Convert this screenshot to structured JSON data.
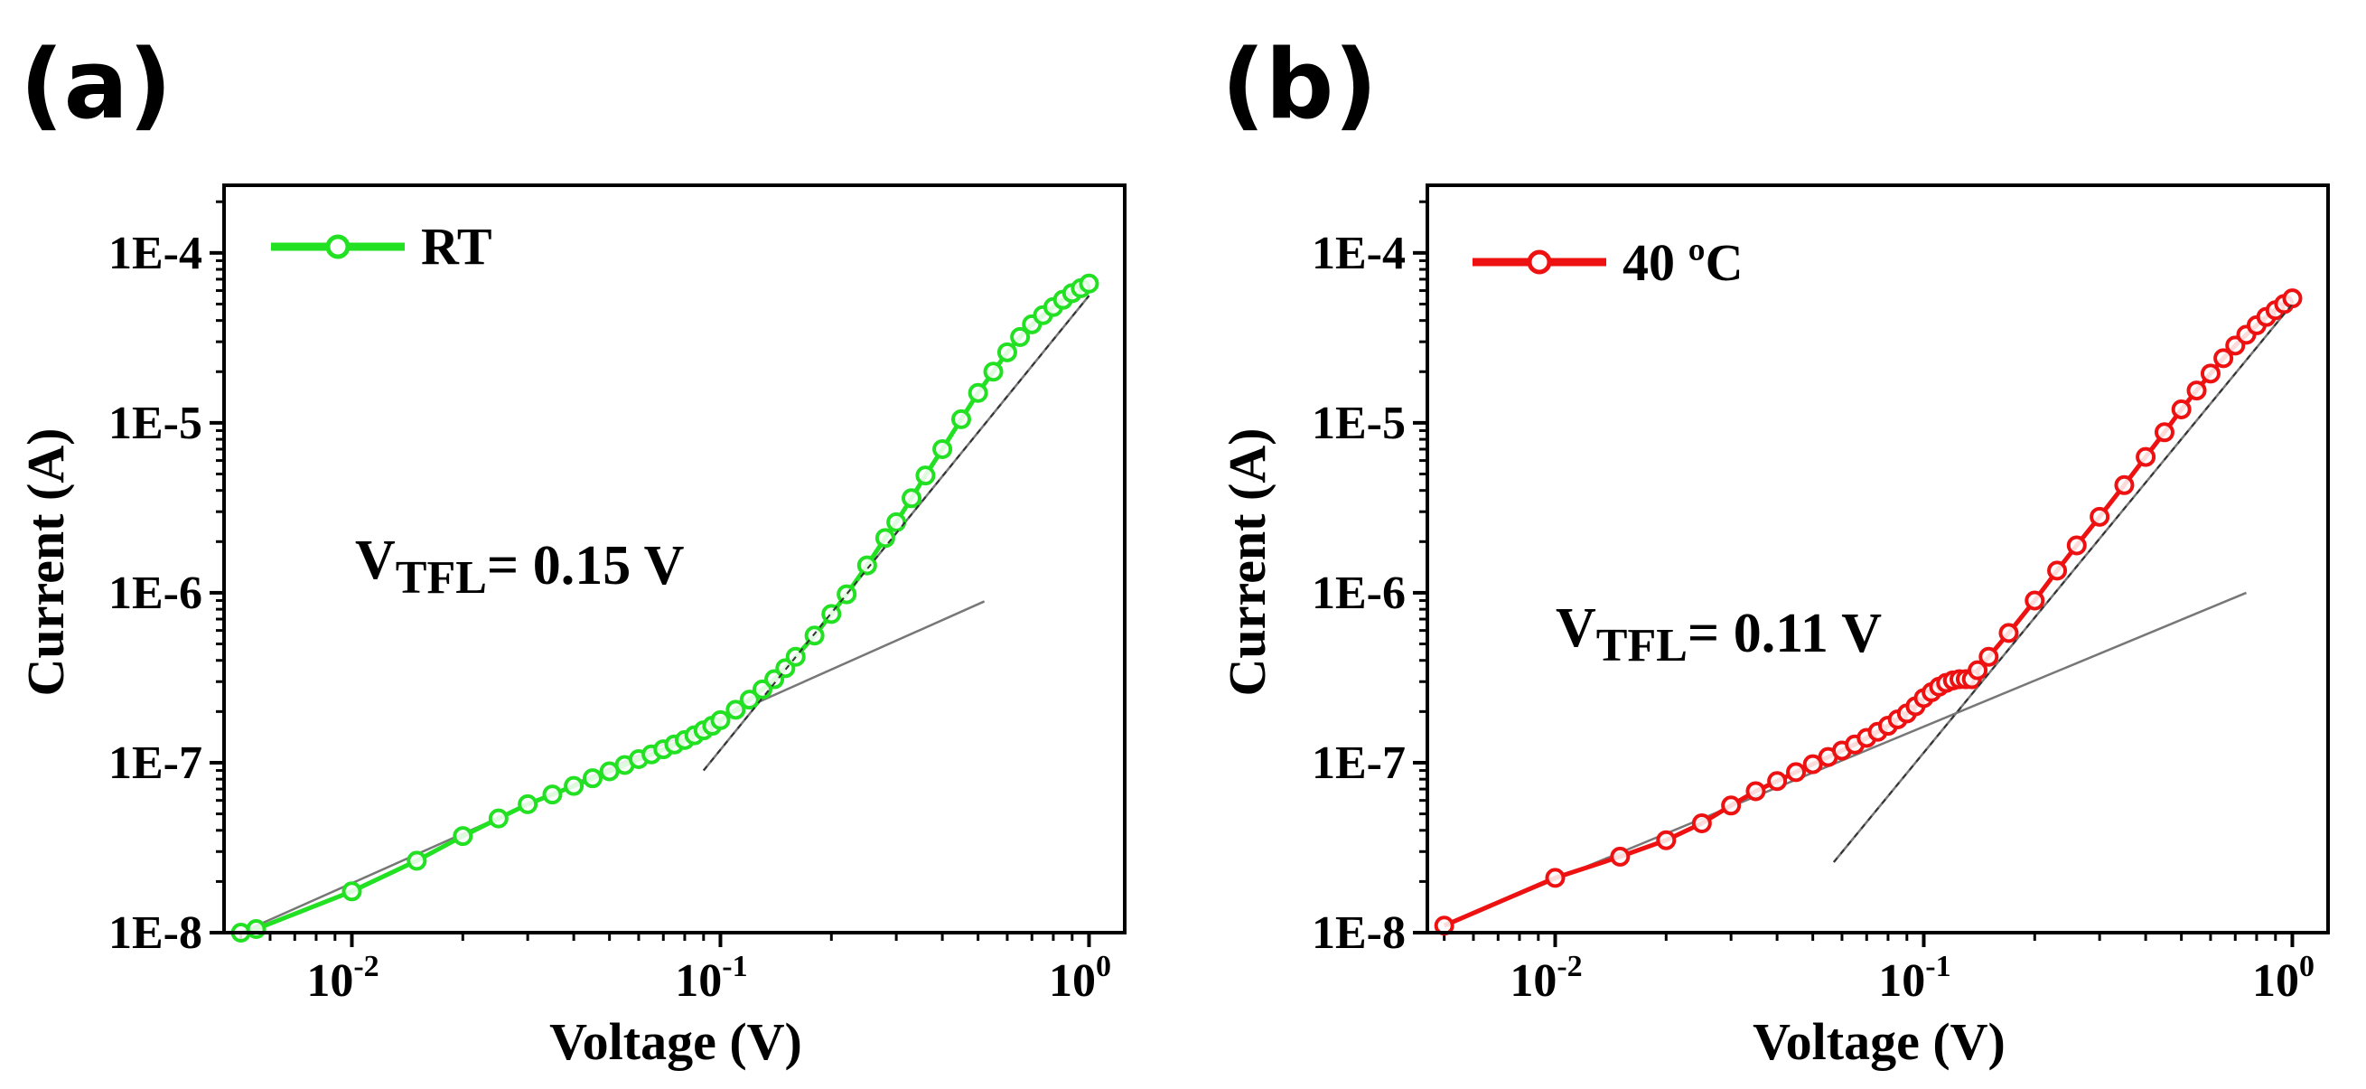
{
  "chart_data": [
    {
      "type": "scatter",
      "panel_label": "(a)",
      "xlabel": "Voltage (V)",
      "ylabel": "Current (A)",
      "xscale": "log",
      "yscale": "log",
      "xlim": [
        0.0045,
        1.25
      ],
      "ylim": [
        1e-08,
        0.00025
      ],
      "x_ticks": [
        {
          "value": 0.01,
          "base": "10",
          "exp": "-2"
        },
        {
          "value": 0.1,
          "base": "10",
          "exp": "-1"
        },
        {
          "value": 1,
          "base": "10",
          "exp": "0"
        }
      ],
      "y_ticks": [
        {
          "value": 1e-08,
          "label": "1E-8"
        },
        {
          "value": 1e-07,
          "label": "1E-7"
        },
        {
          "value": 1e-06,
          "label": "1E-6"
        },
        {
          "value": 1e-05,
          "label": "1E-5"
        },
        {
          "value": 0.0001,
          "label": "1E-4"
        }
      ],
      "legend": {
        "label": "RT",
        "position": "top-left"
      },
      "color": "#22e022",
      "annotation": {
        "main": "V",
        "sub": "TFL",
        "rest": "= 0.15 V"
      },
      "series": {
        "name": "RT",
        "x": [
          0.005,
          0.0055,
          0.01,
          0.015,
          0.02,
          0.025,
          0.03,
          0.035,
          0.04,
          0.045,
          0.05,
          0.055,
          0.06,
          0.065,
          0.07,
          0.075,
          0.08,
          0.085,
          0.09,
          0.095,
          0.1,
          0.11,
          0.12,
          0.13,
          0.14,
          0.15,
          0.16,
          0.18,
          0.2,
          0.22,
          0.25,
          0.28,
          0.3,
          0.33,
          0.36,
          0.4,
          0.45,
          0.5,
          0.55,
          0.6,
          0.65,
          0.7,
          0.75,
          0.8,
          0.85,
          0.9,
          0.95,
          1.0
        ],
        "y": [
          1e-08,
          1.05e-08,
          1.75e-08,
          2.65e-08,
          3.7e-08,
          4.7e-08,
          5.7e-08,
          6.5e-08,
          7.3e-08,
          8.1e-08,
          8.9e-08,
          9.7e-08,
          1.05e-07,
          1.12e-07,
          1.2e-07,
          1.28e-07,
          1.36e-07,
          1.45e-07,
          1.55e-07,
          1.65e-07,
          1.78e-07,
          2.05e-07,
          2.35e-07,
          2.7e-07,
          3.1e-07,
          3.6e-07,
          4.2e-07,
          5.6e-07,
          7.5e-07,
          9.8e-07,
          1.45e-06,
          2.1e-06,
          2.6e-06,
          3.6e-06,
          4.9e-06,
          7e-06,
          1.05e-05,
          1.5e-05,
          2e-05,
          2.6e-05,
          3.2e-05,
          3.8e-05,
          4.3e-05,
          4.8e-05,
          5.3e-05,
          5.8e-05,
          6.2e-05,
          6.6e-05
        ]
      },
      "fit_lines": [
        {
          "x": [
            0.005,
            0.52
          ],
          "y": [
            1e-08,
            8.9e-07
          ]
        },
        {
          "x": [
            0.09,
            1.0
          ],
          "y": [
            9e-08,
            5.6e-05
          ]
        }
      ]
    },
    {
      "type": "scatter",
      "panel_label": "(b)",
      "xlabel": "Voltage (V)",
      "ylabel": "Current (A)",
      "xscale": "log",
      "yscale": "log",
      "xlim": [
        0.0045,
        1.25
      ],
      "ylim": [
        1e-08,
        0.00025
      ],
      "x_ticks": [
        {
          "value": 0.01,
          "base": "10",
          "exp": "-2"
        },
        {
          "value": 0.1,
          "base": "10",
          "exp": "-1"
        },
        {
          "value": 1,
          "base": "10",
          "exp": "0"
        }
      ],
      "y_ticks": [
        {
          "value": 1e-08,
          "label": "1E-8"
        },
        {
          "value": 1e-07,
          "label": "1E-7"
        },
        {
          "value": 1e-06,
          "label": "1E-6"
        },
        {
          "value": 1e-05,
          "label": "1E-5"
        },
        {
          "value": 0.0001,
          "label": "1E-4"
        }
      ],
      "legend": {
        "label": "40 ºC",
        "position": "top-left"
      },
      "color": "#ee1111",
      "annotation": {
        "main": "V",
        "sub": "TFL",
        "rest": "= 0.11 V"
      },
      "series": {
        "name": "40 ºC",
        "x": [
          0.005,
          0.01,
          0.015,
          0.02,
          0.025,
          0.03,
          0.035,
          0.04,
          0.045,
          0.05,
          0.055,
          0.06,
          0.065,
          0.07,
          0.075,
          0.08,
          0.085,
          0.09,
          0.095,
          0.1,
          0.105,
          0.11,
          0.115,
          0.12,
          0.125,
          0.13,
          0.135,
          0.14,
          0.15,
          0.17,
          0.2,
          0.23,
          0.26,
          0.3,
          0.35,
          0.4,
          0.45,
          0.5,
          0.55,
          0.6,
          0.65,
          0.7,
          0.75,
          0.8,
          0.85,
          0.9,
          0.95,
          1.0
        ],
        "y": [
          1.1e-08,
          2.1e-08,
          2.8e-08,
          3.5e-08,
          4.4e-08,
          5.6e-08,
          6.8e-08,
          7.8e-08,
          8.8e-08,
          9.8e-08,
          1.08e-07,
          1.18e-07,
          1.28e-07,
          1.4e-07,
          1.52e-07,
          1.65e-07,
          1.8e-07,
          1.95e-07,
          2.15e-07,
          2.4e-07,
          2.6e-07,
          2.8e-07,
          2.95e-07,
          3.05e-07,
          3.1e-07,
          3.1e-07,
          3.1e-07,
          3.5e-07,
          4.2e-07,
          5.8e-07,
          9e-07,
          1.35e-06,
          1.9e-06,
          2.8e-06,
          4.3e-06,
          6.3e-06,
          8.8e-06,
          1.2e-05,
          1.55e-05,
          1.95e-05,
          2.4e-05,
          2.85e-05,
          3.3e-05,
          3.75e-05,
          4.2e-05,
          4.6e-05,
          5e-05,
          5.4e-05
        ]
      },
      "fit_lines": [
        {
          "x": [
            0.005,
            0.75
          ],
          "y": [
            1.1e-08,
            1e-06
          ]
        },
        {
          "x": [
            0.057,
            1.0
          ],
          "y": [
            2.6e-08,
            5e-05
          ]
        }
      ]
    }
  ]
}
